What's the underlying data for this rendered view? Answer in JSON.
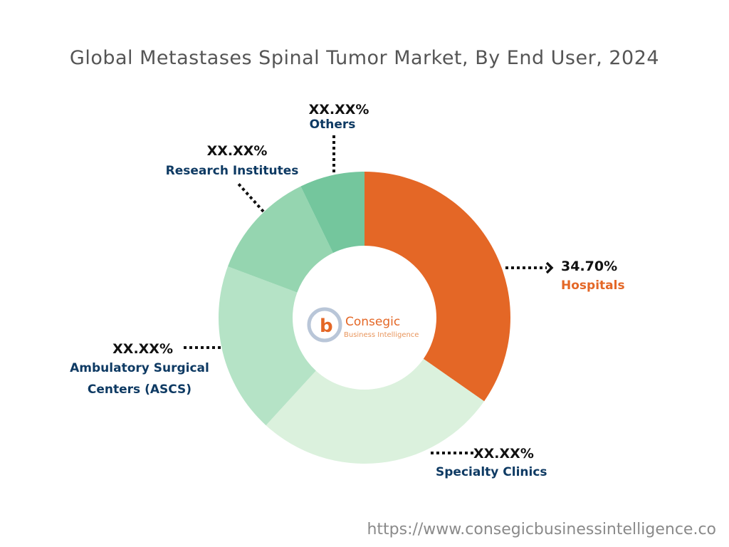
{
  "chart_data": {
    "type": "pie",
    "subtype": "donut",
    "title": "Global Metastases Spinal Tumor Market, By End User, 2024",
    "categories": [
      "Hospitals",
      "Specialty Clinics",
      "Ambulatory Surgical Centers (ASCS)",
      "Research Institutes",
      "Others"
    ],
    "values": [
      34.7,
      27.1,
      18.9,
      12.1,
      7.2
    ],
    "data_labels": [
      "34.70%",
      "XX.XX%",
      "XX.XX%",
      "XX.XX%",
      "XX.XX%"
    ],
    "label_lines": [
      [
        "Hospitals"
      ],
      [
        "Specialty Clinics"
      ],
      [
        "Ambulatory Surgical",
        "Centers (ASCS)"
      ],
      [
        "Research Institutes"
      ],
      [
        "Others"
      ]
    ],
    "colors": [
      "#E46726",
      "#DBF1DD",
      "#B5E3C6",
      "#95D5B0",
      "#74C69D"
    ],
    "label_colors": [
      "#E46726",
      "#0E3A63",
      "#0E3A63",
      "#0E3A63",
      "#0E3A63"
    ]
  },
  "logo": {
    "name": "Consegic",
    "tagline": "Business Intelligence"
  },
  "footer_url": "https://www.consegicbusinessintelligence.co"
}
